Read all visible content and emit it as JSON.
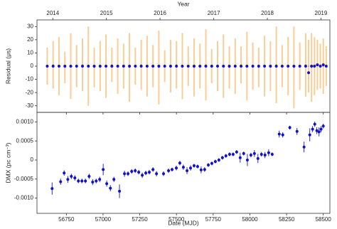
{
  "chart_data": [
    {
      "type": "errorbar",
      "x2label": "Year",
      "ylabel": "Residual (μs)",
      "xlim": [
        56550,
        58545
      ],
      "ylim": [
        -35,
        35
      ],
      "yticks": [
        -30,
        -20,
        -10,
        0,
        10,
        20,
        30
      ],
      "xticks": [
        56750,
        57000,
        57250,
        57500,
        57750,
        58000,
        58250,
        58500
      ],
      "x2ticks": [
        {
          "value": 56658,
          "label": "2014"
        },
        {
          "value": 57023,
          "label": "2015"
        },
        {
          "value": 57388,
          "label": "2016"
        },
        {
          "value": 57754,
          "label": "2017"
        },
        {
          "value": 58119,
          "label": "2018"
        },
        {
          "value": 58484,
          "label": "2019"
        }
      ],
      "x": [
        56620,
        56660,
        56700,
        56740,
        56780,
        56820,
        56860,
        56900,
        56940,
        56980,
        57020,
        57060,
        57100,
        57140,
        57180,
        57220,
        57260,
        57300,
        57340,
        57380,
        57420,
        57460,
        57500,
        57540,
        57580,
        57620,
        57660,
        57700,
        57740,
        57780,
        57820,
        57860,
        57900,
        57940,
        57980,
        58020,
        58060,
        58100,
        58140,
        58180,
        58220,
        58260,
        58300,
        58340,
        58380,
        58400,
        58420,
        58440,
        58460,
        58480,
        58500,
        58520
      ],
      "series": [
        {
          "color": "#f7a440",
          "values": [
            0,
            1,
            0,
            -1,
            0,
            0,
            1,
            0,
            -1,
            0,
            0,
            1,
            0,
            0,
            -1,
            0,
            1,
            0,
            0,
            -1,
            0,
            0,
            1,
            0,
            0,
            -1,
            0,
            1,
            0,
            0,
            0,
            -1,
            0,
            1,
            0,
            0,
            -1,
            0,
            0,
            1,
            0,
            0,
            -1,
            0,
            1,
            0,
            -1,
            0,
            1,
            0,
            0,
            0
          ],
          "errors": [
            14,
            18,
            22,
            12,
            25,
            16,
            20,
            30,
            15,
            19,
            24,
            13,
            21,
            17,
            26,
            14,
            19,
            23,
            16,
            28,
            12,
            20,
            18,
            25,
            15,
            22,
            17,
            27,
            13,
            19,
            24,
            16,
            21,
            14,
            26,
            18,
            15,
            23,
            19,
            29,
            16,
            22,
            31,
            18,
            24,
            20,
            26,
            22,
            19,
            17,
            21,
            15
          ]
        },
        {
          "color": "#1010d0",
          "values": [
            0,
            0,
            0,
            0,
            0,
            0,
            0,
            0,
            0,
            0,
            0,
            0,
            0,
            0,
            0,
            0,
            0,
            0,
            0,
            0,
            0,
            0,
            0,
            0,
            0,
            0,
            0,
            0,
            0,
            0,
            0,
            0,
            0,
            0,
            0,
            0,
            0,
            0,
            0,
            0,
            0,
            0,
            0,
            0,
            0,
            -5,
            0,
            0,
            1,
            0,
            1,
            0
          ],
          "errors": [
            1,
            1,
            1,
            1,
            1,
            1,
            1,
            1,
            1,
            1,
            1,
            1,
            1,
            1,
            1,
            1,
            1,
            1,
            1,
            1,
            1,
            1,
            1,
            1,
            1,
            1,
            1,
            1,
            1,
            1,
            1,
            1,
            1,
            1,
            1,
            1,
            1,
            1,
            1,
            1,
            1,
            1,
            1,
            1,
            1,
            1,
            1,
            1,
            1,
            1,
            1,
            1
          ]
        }
      ]
    },
    {
      "type": "errorbar",
      "xlabel": "Date (MJD)",
      "ylabel": "DMX (pc cm⁻³)",
      "xlim": [
        56550,
        58545
      ],
      "ylim": [
        -0.0014,
        0.00125
      ],
      "yticks": [
        {
          "value": -0.001,
          "label": "-0.0010"
        },
        -0.0005,
        0,
        0.0005,
        {
          "value": 0.001,
          "label": "0.0010"
        }
      ],
      "xticks": [
        56750,
        57000,
        57250,
        57500,
        57750,
        58000,
        58250,
        58500
      ],
      "x": [
        56653,
        56711,
        56735,
        56760,
        56784,
        56808,
        56832,
        56856,
        56880,
        56905,
        56929,
        56953,
        56977,
        57001,
        57025,
        57050,
        57074,
        57112,
        57146,
        57170,
        57195,
        57219,
        57243,
        57267,
        57291,
        57315,
        57340,
        57364,
        57412,
        57446,
        57470,
        57499,
        57523,
        57547,
        57572,
        57596,
        57620,
        57644,
        57668,
        57692,
        57717,
        57741,
        57765,
        57789,
        57813,
        57837,
        57862,
        57886,
        57910,
        57934,
        57958,
        57983,
        58007,
        58031,
        58055,
        58079,
        58103,
        58128,
        58152,
        58200,
        58224,
        58272,
        58321,
        58369,
        58408,
        58427,
        58442,
        58456,
        58471,
        58485,
        58500
      ],
      "series": [
        {
          "color": "#1010d0",
          "values": [
            -0.00075,
            -0.00057,
            -0.00034,
            -0.00051,
            -0.00043,
            -0.00047,
            -0.00055,
            -0.00055,
            -0.00055,
            -0.00043,
            -0.00058,
            -0.00055,
            -0.00051,
            -0.00025,
            -0.00062,
            -0.00074,
            -0.00051,
            -0.00082,
            -0.00036,
            -0.00036,
            -0.0003,
            -0.00028,
            -0.00032,
            -0.0004,
            -0.00034,
            -0.00032,
            -0.00025,
            -0.00036,
            -0.00036,
            -0.00028,
            -0.00025,
            -0.00021,
            -8e-05,
            -0.00019,
            -0.00028,
            -0.00021,
            -0.00015,
            -0.00017,
            -0.00026,
            -0.00025,
            -0.00013,
            -9e-05,
            -4e-05,
            0,
            6e-05,
            0.00011,
            0.00015,
            0.00015,
            0.00021,
            6e-05,
            0.00017,
            0,
            0.00013,
            0.00017,
            4e-05,
            0.00015,
            0.00013,
            0.00019,
            0.00015,
            0.00068,
            0.00066,
            0.00085,
            0.00075,
            0.00034,
            0.00066,
            0.00081,
            0.00094,
            0.00077,
            0.00074,
            0.00081,
            0.00089
          ],
          "errors": [
            0.00016,
            8e-05,
            7e-05,
            9e-05,
            7e-05,
            7e-05,
            6e-05,
            6e-05,
            6e-05,
            7e-05,
            8e-05,
            6e-05,
            7e-05,
            0.00015,
            8e-05,
            8e-05,
            7e-05,
            0.00018,
            8e-05,
            6e-05,
            6e-05,
            6e-05,
            6e-05,
            7e-05,
            6e-05,
            6e-05,
            6e-05,
            7e-05,
            6e-05,
            6e-05,
            5e-05,
            6e-05,
            6e-05,
            7e-05,
            9e-05,
            7e-05,
            5e-05,
            5e-05,
            9e-05,
            6e-05,
            5e-05,
            5e-05,
            5e-05,
            5e-05,
            5e-05,
            5e-05,
            5e-05,
            5e-05,
            5e-05,
            0.00013,
            5e-05,
            0.00016,
            6e-05,
            9e-05,
            0.00012,
            6e-05,
            8e-05,
            9e-05,
            5e-05,
            9e-05,
            7e-05,
            5e-05,
            9e-05,
            0.00014,
            0.00017,
            8e-05,
            7e-05,
            9e-05,
            0.00012,
            8e-05,
            6e-05
          ]
        }
      ]
    }
  ]
}
